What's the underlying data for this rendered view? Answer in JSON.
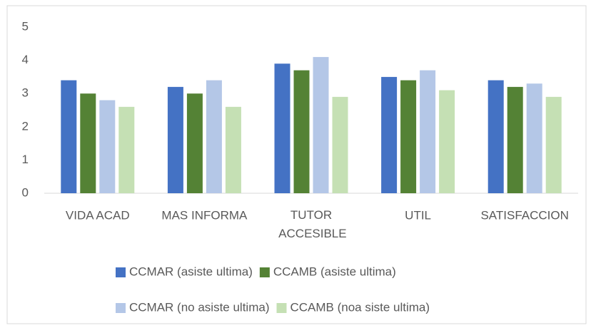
{
  "chart_data": {
    "type": "bar",
    "categories": [
      "VIDA ACAD",
      "MAS INFORMA",
      "TUTOR ACCESIBLE",
      "UTIL",
      "SATISFACCION"
    ],
    "series": [
      {
        "name": "CCMAR (asiste ultima)",
        "color": "#4472c4",
        "values": [
          3.4,
          3.2,
          3.9,
          3.5,
          3.4
        ]
      },
      {
        "name": "CCAMB (asiste ultima)",
        "color": "#548235",
        "values": [
          3.0,
          3.0,
          3.7,
          3.4,
          3.2
        ]
      },
      {
        "name": "CCMAR (no asiste ultima)",
        "color": "#b4c7e7",
        "values": [
          2.8,
          3.4,
          4.1,
          3.7,
          3.3
        ]
      },
      {
        "name": "CCAMB (noa siste ultima)",
        "color": "#c5e0b4",
        "values": [
          2.6,
          2.6,
          2.9,
          3.1,
          2.9
        ]
      }
    ],
    "ylim": [
      0,
      5
    ],
    "yticks": [
      0,
      1,
      2,
      3,
      4,
      5
    ],
    "grid": false,
    "legend": "bottom"
  }
}
